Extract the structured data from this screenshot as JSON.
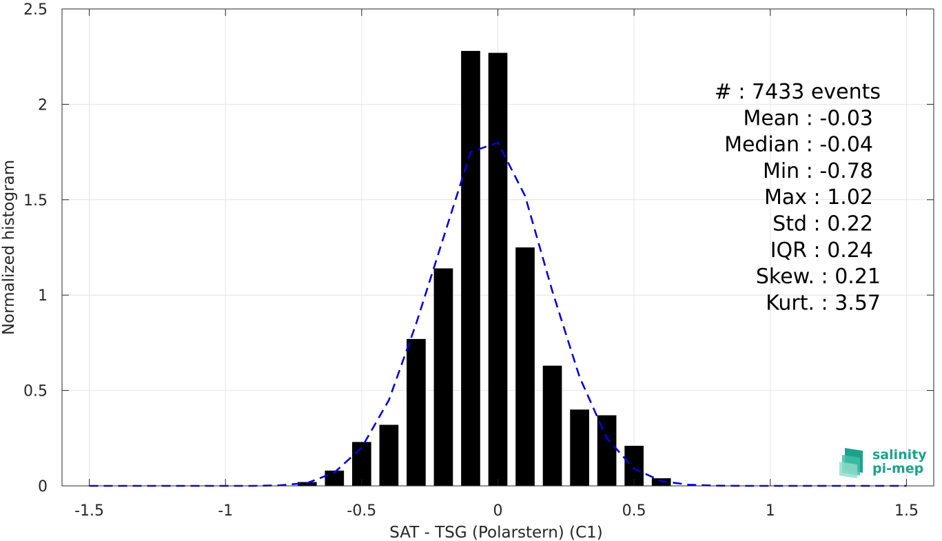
{
  "chart_data": {
    "type": "bar",
    "xlabel": "SAT - TSG (Polarstern) (C1)",
    "ylabel": "Normalized histogram",
    "xlim": [
      -1.6,
      1.6
    ],
    "ylim": [
      0,
      2.5
    ],
    "xticks": [
      -1.5,
      -1,
      -0.5,
      0,
      0.5,
      1,
      1.5
    ],
    "xtick_labels": [
      "-1.5",
      "-1",
      "-0.5",
      "0",
      "0.5",
      "1",
      "1.5"
    ],
    "yticks": [
      0,
      0.5,
      1,
      1.5,
      2,
      2.5
    ],
    "ytick_labels": [
      "0",
      "0.5",
      "1",
      "1.5",
      "2",
      "2.5"
    ],
    "grid": true,
    "bar_color": "#000000",
    "bar_width": 0.07,
    "bars": {
      "x": [
        -0.7,
        -0.6,
        -0.5,
        -0.4,
        -0.3,
        -0.2,
        -0.1,
        0.0,
        0.1,
        0.2,
        0.3,
        0.4,
        0.5,
        0.6
      ],
      "values": [
        0.02,
        0.08,
        0.23,
        0.32,
        0.77,
        1.14,
        2.28,
        2.27,
        1.25,
        0.63,
        0.4,
        0.37,
        0.21,
        0.04
      ]
    },
    "fit_curve": {
      "style": "dashed",
      "color": "#0000dd",
      "x": [
        -1.5,
        -1.4,
        -1.3,
        -1.2,
        -1.1,
        -1.0,
        -0.9,
        -0.8,
        -0.7,
        -0.6,
        -0.5,
        -0.4,
        -0.3,
        -0.2,
        -0.1,
        0.0,
        0.1,
        0.2,
        0.3,
        0.4,
        0.5,
        0.6,
        0.7,
        0.8,
        0.9,
        1.0,
        1.1,
        1.2,
        1.3,
        1.4,
        1.5
      ],
      "y": [
        0.0,
        0.0,
        0.0,
        0.0,
        0.0,
        0.0,
        0.0,
        0.003,
        0.015,
        0.07,
        0.2,
        0.45,
        0.85,
        1.3,
        1.75,
        1.8,
        1.52,
        1.02,
        0.57,
        0.25,
        0.09,
        0.025,
        0.006,
        0.001,
        0.0,
        0.0,
        0.0,
        0.0,
        0.0,
        0.0,
        0.0
      ]
    },
    "stats": [
      "#  : 7433 events",
      "Mean : -0.03",
      "Median : -0.04",
      "Min : -0.78",
      "Max : 1.02",
      "Std : 0.22",
      "IQR : 0.24",
      "Skew. : 0.21",
      "Kurt. : 3.57"
    ]
  },
  "logo": {
    "line1": "salinity",
    "line2": "pi-mep",
    "color": "#1aa38c"
  }
}
